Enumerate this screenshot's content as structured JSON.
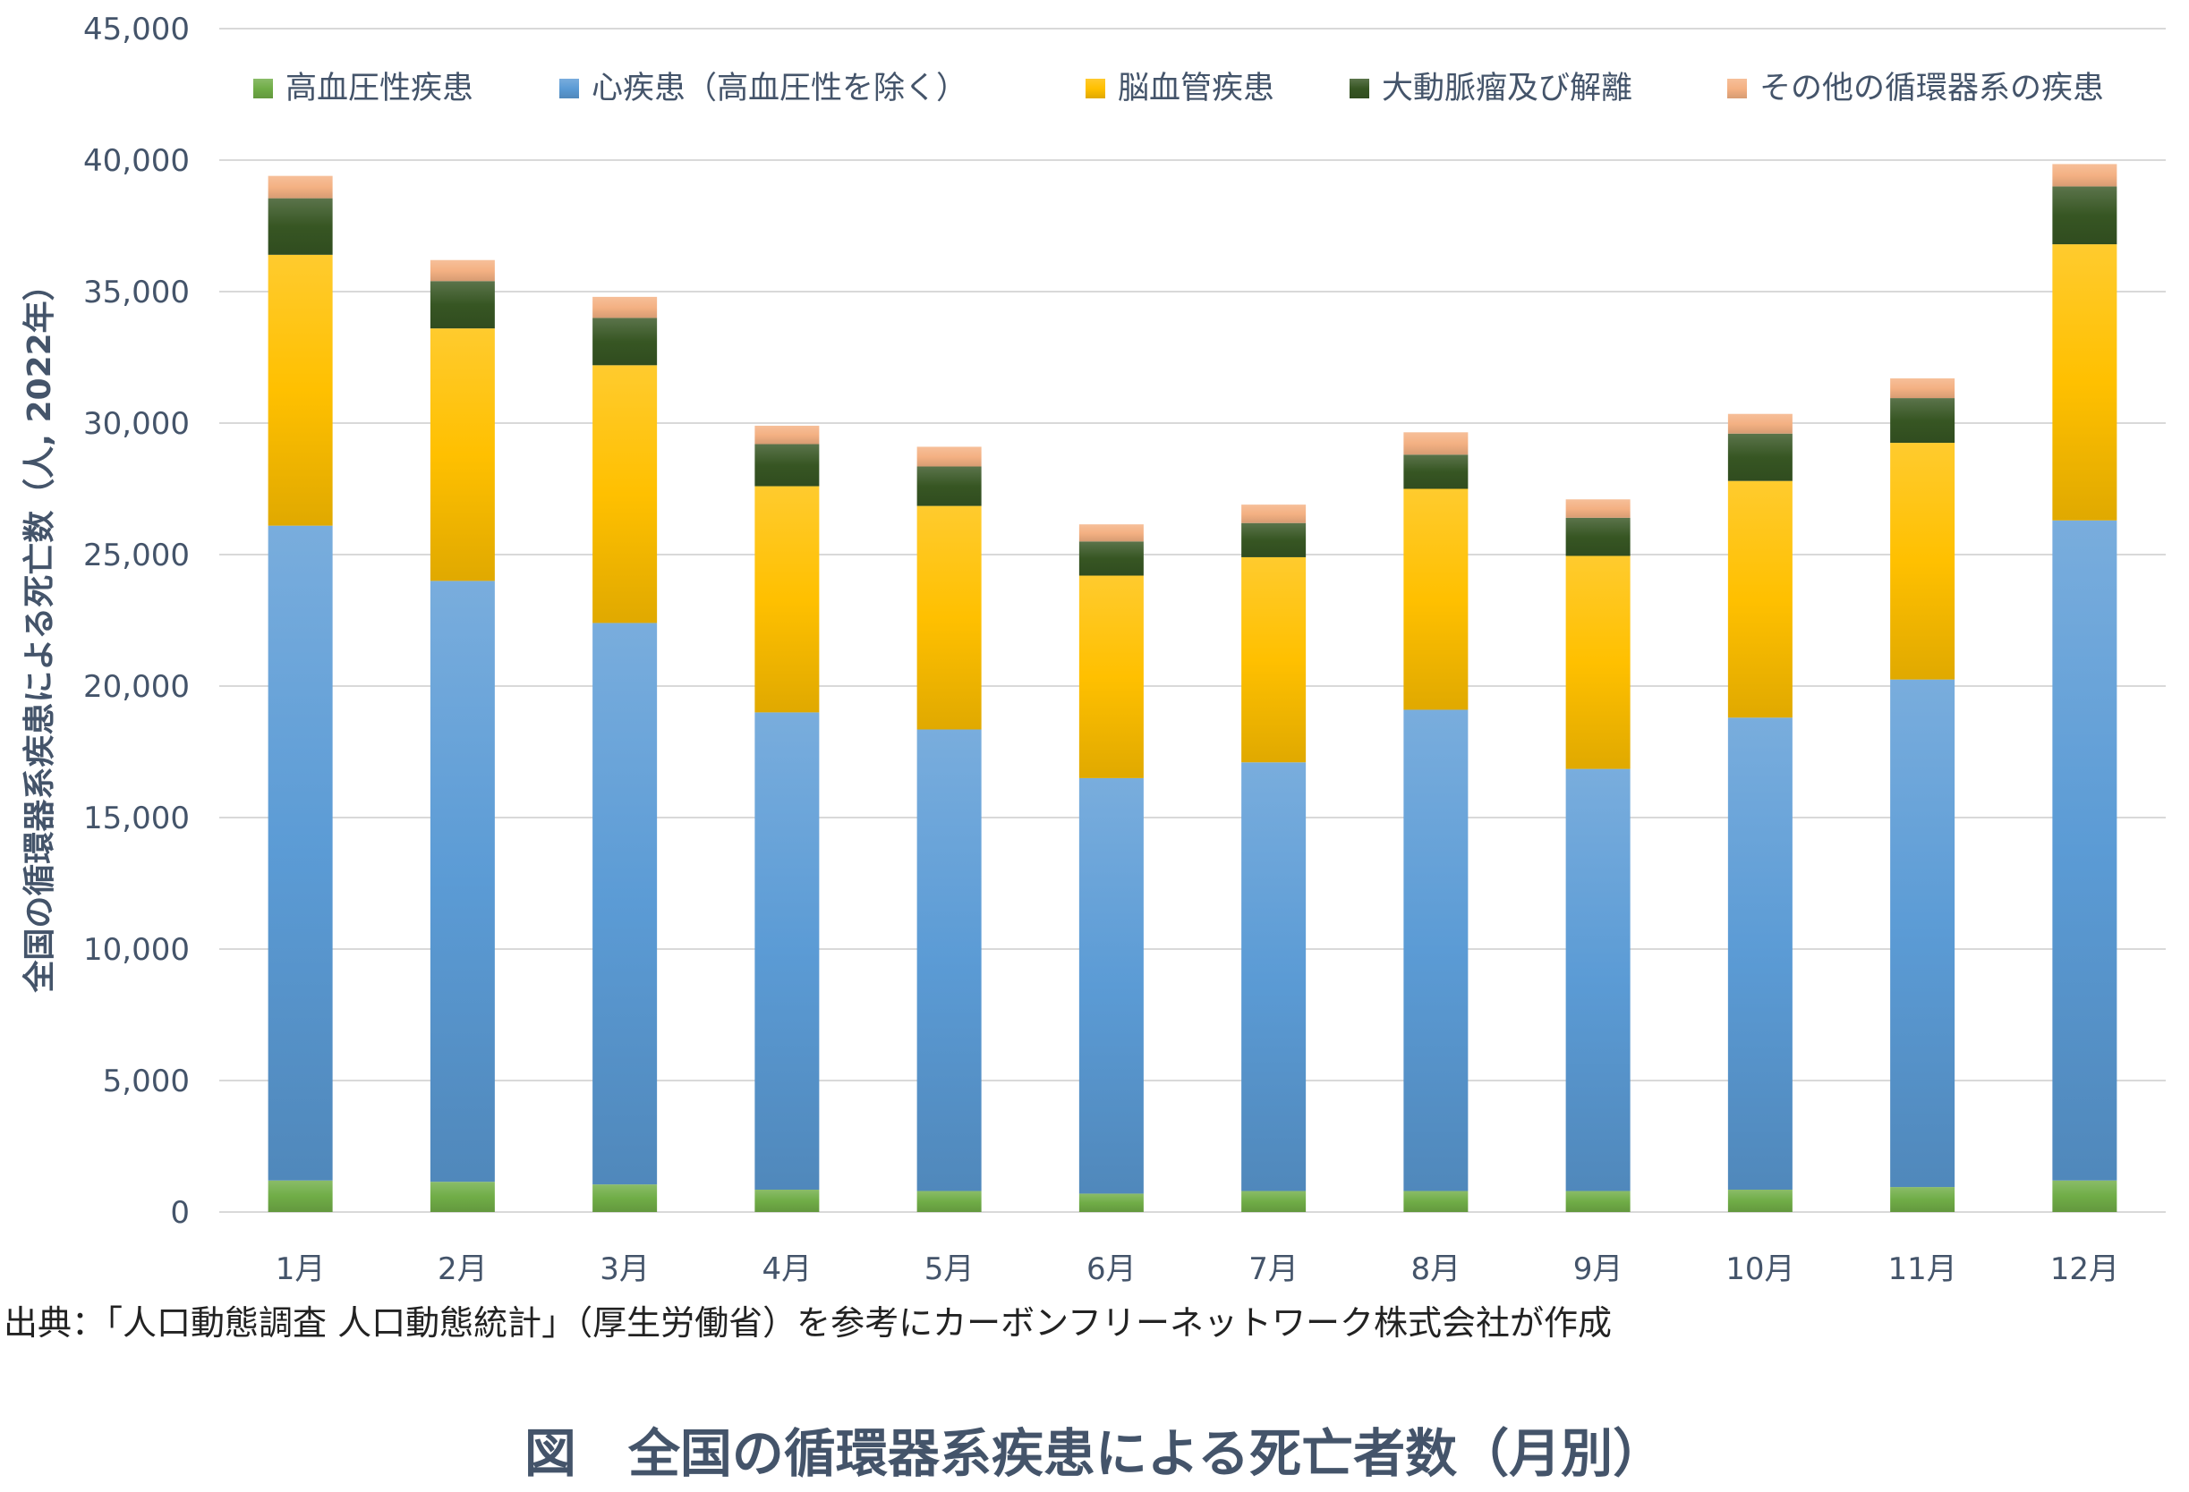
{
  "chart_data": {
    "type": "bar",
    "stacked": true,
    "categories": [
      "1月",
      "2月",
      "3月",
      "4月",
      "5月",
      "6月",
      "7月",
      "8月",
      "9月",
      "10月",
      "11月",
      "12月"
    ],
    "ylabel": "全国の循環器系疾患による死亡数（人, 2022年）",
    "ylim": [
      0,
      45000
    ],
    "yticks": [
      0,
      5000,
      10000,
      15000,
      20000,
      25000,
      30000,
      35000,
      40000,
      45000
    ],
    "ytick_labels": [
      "0",
      "5,000",
      "10,000",
      "15,000",
      "20,000",
      "25,000",
      "30,000",
      "35,000",
      "40,000",
      "45,000"
    ],
    "grid": true,
    "legend_position": "top",
    "series": [
      {
        "name": "高血圧性疾患",
        "color": "#70AD47",
        "values": [
          1200,
          1150,
          1050,
          850,
          800,
          700,
          800,
          800,
          800,
          850,
          950,
          1200
        ]
      },
      {
        "name": "心疾患（高血圧性を除く）",
        "color": "#5B9BD5",
        "values": [
          24900,
          22850,
          21350,
          18150,
          17550,
          15800,
          16300,
          18300,
          16050,
          17950,
          19300,
          25100
        ]
      },
      {
        "name": "脳血管疾患",
        "color": "#FFC000",
        "values": [
          10300,
          9600,
          9800,
          8600,
          8500,
          7700,
          7800,
          8400,
          8100,
          9000,
          9000,
          10500
        ]
      },
      {
        "name": "大動脈瘤及び解離",
        "color": "#375623",
        "values": [
          2150,
          1800,
          1800,
          1600,
          1500,
          1300,
          1300,
          1300,
          1450,
          1800,
          1700,
          2200
        ]
      },
      {
        "name": "その他の循環器系の疾患",
        "color": "#F4B183",
        "values": [
          850,
          800,
          800,
          700,
          750,
          650,
          700,
          850,
          700,
          750,
          750,
          850
        ]
      }
    ]
  },
  "source_text": "出典：「人口動態調査 人口動態統計」（厚生労働省）を参考にカーボンフリーネットワーク株式会社が作成",
  "figure_title": "図　全国の循環器系疾患による死亡者数（月別）"
}
